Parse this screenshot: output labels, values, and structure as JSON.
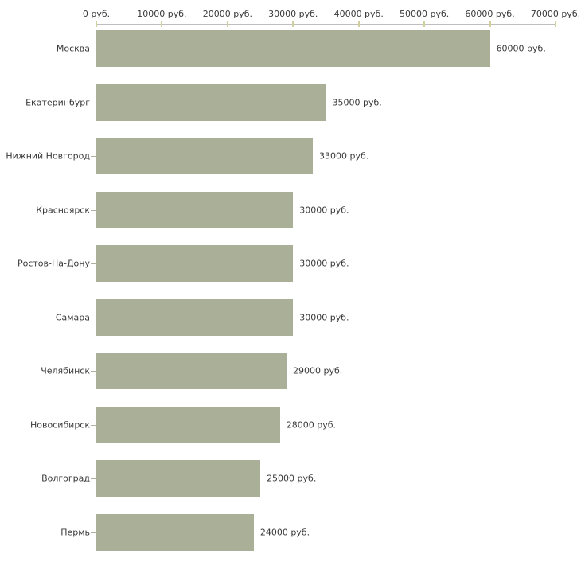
{
  "chart_data": {
    "type": "bar",
    "orientation": "horizontal",
    "categories": [
      "Москва",
      "Екатеринбург",
      "Нижний Новгород",
      "Красноярск",
      "Ростов-На-Дону",
      "Самара",
      "Челябинск",
      "Новосибирск",
      "Волгоград",
      "Пермь"
    ],
    "values": [
      60000,
      35000,
      33000,
      30000,
      30000,
      30000,
      29000,
      28000,
      25000,
      24000
    ],
    "value_labels": [
      "60000 руб.",
      "35000 руб.",
      "33000 руб.",
      "30000 руб.",
      "30000 руб.",
      "30000 руб.",
      "29000 руб.",
      "28000 руб.",
      "25000 руб.",
      "24000 руб."
    ],
    "x_ticks": [
      0,
      10000,
      20000,
      30000,
      40000,
      50000,
      60000,
      70000
    ],
    "x_tick_labels": [
      "0 руб.",
      "10000 руб.",
      "20000 руб.",
      "30000 руб.",
      "40000 руб.",
      "50000 руб.",
      "60000 руб.",
      "70000 руб."
    ],
    "xlim": [
      0,
      70000
    ],
    "unit": "руб.",
    "grid": false,
    "legend": false,
    "axis_position": "top",
    "colors": {
      "bar": "#aab098",
      "axis": "#bfbfbf",
      "tick": "#d2cf9f",
      "category_tick": "#b0b0a0",
      "text": "#3a3a3a",
      "background": "#ffffff"
    }
  }
}
